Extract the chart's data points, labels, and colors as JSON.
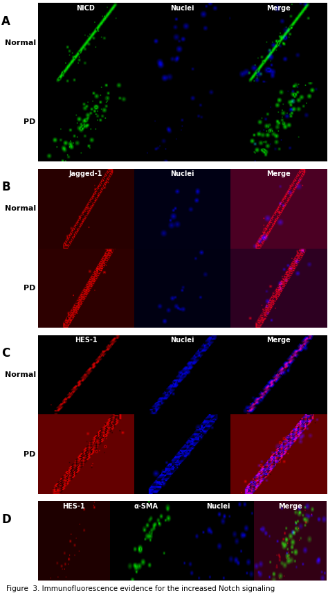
{
  "figure_width": 4.74,
  "figure_height": 8.82,
  "dpi": 100,
  "background_color": "#ffffff",
  "panels": {
    "A": {
      "label": "A",
      "col_headers": [
        "NICD",
        "Nuclei",
        "Merge"
      ],
      "row_labels": [
        "Normal",
        "PD"
      ],
      "rows": 2,
      "cols": 3
    },
    "B": {
      "label": "B",
      "col_headers": [
        "Jagged-1",
        "Nuclei",
        "Merge"
      ],
      "row_labels": [
        "Normal",
        "PD"
      ],
      "rows": 2,
      "cols": 3
    },
    "C": {
      "label": "C",
      "col_headers": [
        "HES-1",
        "Nuclei",
        "Merge"
      ],
      "row_labels": [
        "Normal",
        "PD"
      ],
      "rows": 2,
      "cols": 3
    },
    "D": {
      "label": "D",
      "col_headers": [
        "HES-1",
        "α-SMA",
        "Nuclei",
        "Merge"
      ],
      "rows": 1,
      "cols": 4
    }
  },
  "caption": "Figure  3. Immunofluorescence evidence for the increased Notch signaling",
  "caption_fontsize": 7.5,
  "label_fontsize": 12,
  "header_fontsize": 7,
  "row_label_fontsize": 8
}
